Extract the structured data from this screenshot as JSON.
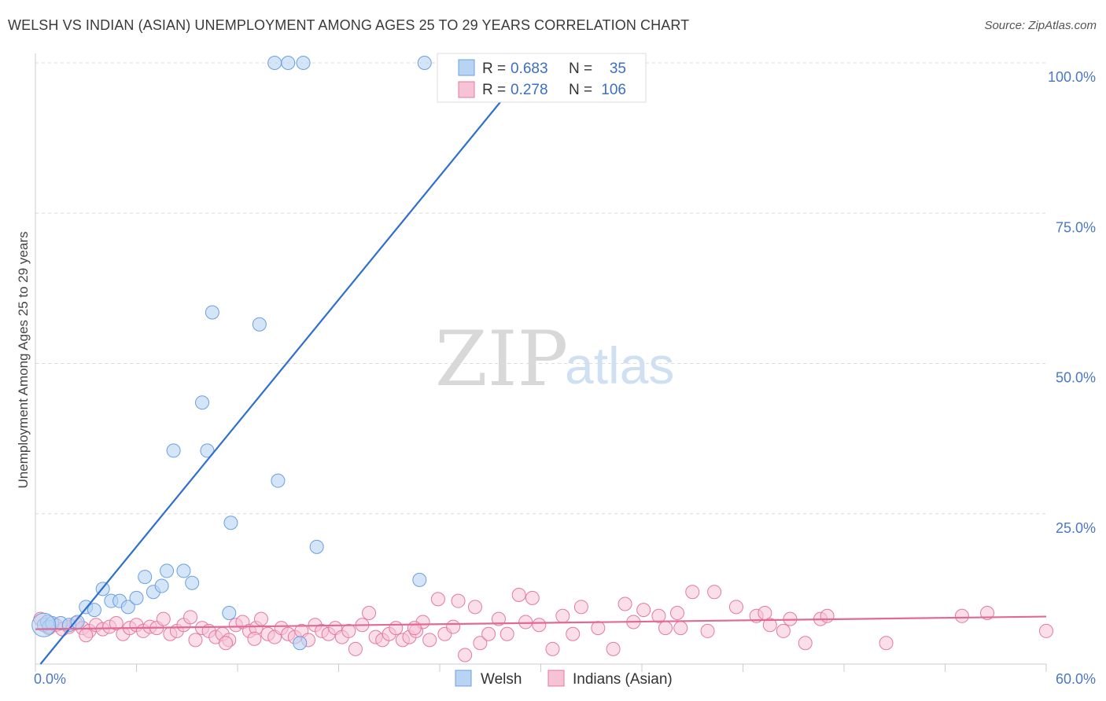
{
  "title": "WELSH VS INDIAN (ASIAN) UNEMPLOYMENT AMONG AGES 25 TO 29 YEARS CORRELATION CHART",
  "source": "Source: ZipAtlas.com",
  "watermark": {
    "zip": "ZIP",
    "atlas": "atlas"
  },
  "colors": {
    "welsh": "#6a9fe0",
    "welsh_fill": "#b9d3f3",
    "indian": "#e47aa0",
    "indian_fill": "#f6c3d5",
    "welsh_line": "#2f6fcd",
    "indian_line": "#e06a95"
  },
  "chart_data": {
    "type": "scatter",
    "title": "WELSH VS INDIAN (ASIAN) UNEMPLOYMENT AMONG AGES 25 TO 29 YEARS CORRELATION CHART",
    "xlabel": "",
    "ylabel": "Unemployment Among Ages 25 to 29 years",
    "xlim": [
      0,
      60
    ],
    "ylim": [
      0,
      100
    ],
    "x_tick_labels": [
      "0.0%",
      "60.0%"
    ],
    "y_tick_labels": [
      "25.0%",
      "50.0%",
      "75.0%",
      "100.0%"
    ],
    "y_ticks": [
      25,
      50,
      75,
      100
    ],
    "legend": [
      {
        "name": "Welsh",
        "R": "0.683",
        "N": "35"
      },
      {
        "name": "Indians (Asian)",
        "R": "0.278",
        "N": "106"
      }
    ],
    "legend_labels": {
      "r": "R =",
      "n": "N ="
    },
    "series": [
      {
        "name": "Welsh",
        "trend": {
          "x0": 0.3,
          "y0": 0,
          "x1": 29.5,
          "y1": 100
        },
        "points": [
          [
            0.5,
            6.5
          ],
          [
            0.7,
            7.0
          ],
          [
            0.8,
            6.2
          ],
          [
            1.0,
            6.8
          ],
          [
            1.5,
            6.8
          ],
          [
            2.0,
            6.5
          ],
          [
            2.5,
            7.0
          ],
          [
            3.0,
            9.5
          ],
          [
            3.5,
            9.0
          ],
          [
            4.0,
            12.5
          ],
          [
            4.5,
            10.5
          ],
          [
            5.0,
            10.5
          ],
          [
            5.5,
            9.5
          ],
          [
            6.0,
            11.0
          ],
          [
            6.5,
            14.5
          ],
          [
            7.0,
            12.0
          ],
          [
            7.5,
            13.0
          ],
          [
            7.8,
            15.5
          ],
          [
            8.2,
            35.5
          ],
          [
            8.8,
            15.5
          ],
          [
            9.3,
            13.5
          ],
          [
            9.9,
            43.5
          ],
          [
            10.2,
            35.5
          ],
          [
            10.5,
            58.5
          ],
          [
            11.6,
            23.5
          ],
          [
            11.5,
            8.5
          ],
          [
            13.3,
            56.5
          ],
          [
            14.2,
            100
          ],
          [
            14.4,
            30.5
          ],
          [
            15.0,
            100
          ],
          [
            15.7,
            3.5
          ],
          [
            15.9,
            100
          ],
          [
            16.7,
            19.5
          ],
          [
            22.8,
            14.0
          ],
          [
            23.1,
            100
          ]
        ]
      },
      {
        "name": "Indians (Asian)",
        "trend": {
          "x0": 0,
          "y0": 5.8,
          "x1": 60,
          "y1": 7.9
        },
        "points": [
          [
            0.3,
            7.5
          ],
          [
            0.8,
            6.0
          ],
          [
            1.2,
            6.5
          ],
          [
            1.6,
            5.8
          ],
          [
            2.0,
            6.2
          ],
          [
            2.4,
            6.8
          ],
          [
            2.8,
            6.0
          ],
          [
            3.2,
            5.5
          ],
          [
            3.6,
            6.5
          ],
          [
            4.0,
            5.8
          ],
          [
            4.4,
            6.2
          ],
          [
            4.8,
            6.8
          ],
          [
            5.2,
            5.0
          ],
          [
            5.6,
            6.0
          ],
          [
            6.0,
            6.5
          ],
          [
            6.4,
            5.5
          ],
          [
            6.8,
            6.2
          ],
          [
            7.2,
            6.0
          ],
          [
            7.6,
            7.5
          ],
          [
            8.0,
            5.0
          ],
          [
            8.4,
            5.5
          ],
          [
            8.8,
            6.5
          ],
          [
            9.2,
            7.8
          ],
          [
            9.5,
            4.0
          ],
          [
            9.9,
            6.0
          ],
          [
            10.3,
            5.5
          ],
          [
            10.7,
            4.5
          ],
          [
            11.1,
            5.0
          ],
          [
            11.5,
            4.0
          ],
          [
            11.9,
            6.5
          ],
          [
            12.3,
            7.0
          ],
          [
            12.7,
            5.5
          ],
          [
            13.1,
            6.0
          ],
          [
            13.4,
            7.5
          ],
          [
            13.8,
            5.0
          ],
          [
            14.2,
            4.5
          ],
          [
            14.6,
            6.0
          ],
          [
            15.0,
            5.0
          ],
          [
            15.4,
            4.5
          ],
          [
            15.8,
            5.5
          ],
          [
            16.2,
            4.0
          ],
          [
            16.6,
            6.5
          ],
          [
            17.0,
            5.5
          ],
          [
            17.4,
            5.0
          ],
          [
            17.8,
            6.0
          ],
          [
            18.2,
            4.5
          ],
          [
            18.6,
            5.5
          ],
          [
            19.0,
            2.5
          ],
          [
            19.4,
            6.5
          ],
          [
            19.8,
            8.5
          ],
          [
            20.2,
            4.5
          ],
          [
            20.6,
            4.0
          ],
          [
            21.0,
            5.0
          ],
          [
            21.4,
            6.0
          ],
          [
            21.8,
            4.0
          ],
          [
            22.2,
            4.5
          ],
          [
            22.6,
            5.5
          ],
          [
            23.0,
            7.0
          ],
          [
            23.4,
            4.0
          ],
          [
            23.9,
            10.8
          ],
          [
            24.3,
            5.0
          ],
          [
            25.1,
            10.5
          ],
          [
            25.5,
            1.5
          ],
          [
            26.1,
            9.5
          ],
          [
            26.4,
            3.5
          ],
          [
            26.9,
            5.0
          ],
          [
            27.5,
            7.5
          ],
          [
            28.0,
            5.0
          ],
          [
            28.7,
            11.5
          ],
          [
            29.5,
            11.0
          ],
          [
            29.1,
            7.0
          ],
          [
            29.9,
            6.5
          ],
          [
            30.7,
            2.5
          ],
          [
            31.3,
            8.0
          ],
          [
            31.9,
            5.0
          ],
          [
            32.4,
            9.5
          ],
          [
            33.4,
            6.0
          ],
          [
            34.3,
            2.5
          ],
          [
            35.0,
            10.0
          ],
          [
            35.5,
            7.0
          ],
          [
            36.1,
            9.0
          ],
          [
            37.0,
            8.0
          ],
          [
            37.4,
            6.0
          ],
          [
            38.1,
            8.5
          ],
          [
            38.3,
            6.0
          ],
          [
            39.0,
            12.0
          ],
          [
            39.9,
            5.5
          ],
          [
            40.3,
            12.0
          ],
          [
            41.6,
            9.5
          ],
          [
            42.8,
            8.0
          ],
          [
            43.3,
            8.5
          ],
          [
            43.6,
            6.5
          ],
          [
            44.4,
            5.5
          ],
          [
            44.8,
            7.5
          ],
          [
            45.7,
            3.5
          ],
          [
            46.6,
            7.5
          ],
          [
            47.0,
            8.0
          ],
          [
            50.5,
            3.5
          ],
          [
            55.0,
            8.0
          ],
          [
            56.5,
            8.5
          ],
          [
            60.0,
            5.5
          ],
          [
            22.5,
            6.0
          ],
          [
            11.3,
            3.5
          ],
          [
            24.8,
            6.2
          ],
          [
            13.0,
            4.2
          ],
          [
            3.0,
            4.8
          ]
        ]
      }
    ]
  }
}
